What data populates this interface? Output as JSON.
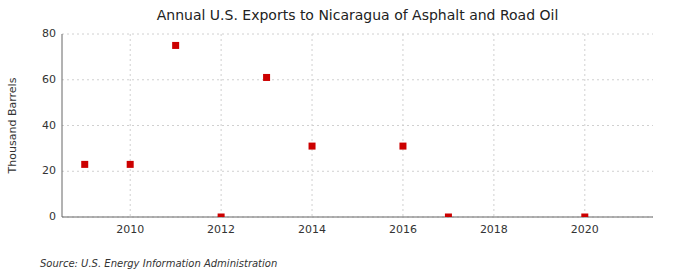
{
  "chart_data": {
    "type": "scatter",
    "title": "Annual U.S. Exports to Nicaragua of Asphalt and Road Oil",
    "y_label": "Thousand Barrels",
    "annotations": [
      "Source: U.S. Energy Information Administration"
    ],
    "x": [
      2009,
      2010,
      2011,
      2012,
      2013,
      2014,
      2016,
      2017,
      2020
    ],
    "values": [
      23,
      23,
      75,
      0,
      61,
      31,
      31,
      0,
      0
    ],
    "color": "#cc0000",
    "marker": "square",
    "xlim": [
      2008.5,
      2021.5
    ],
    "ylim": [
      0,
      80
    ],
    "xticks": [
      2010,
      2012,
      2014,
      2016,
      2018,
      2020
    ],
    "yticks": [
      0,
      20,
      40,
      60,
      80
    ],
    "grid": true
  }
}
